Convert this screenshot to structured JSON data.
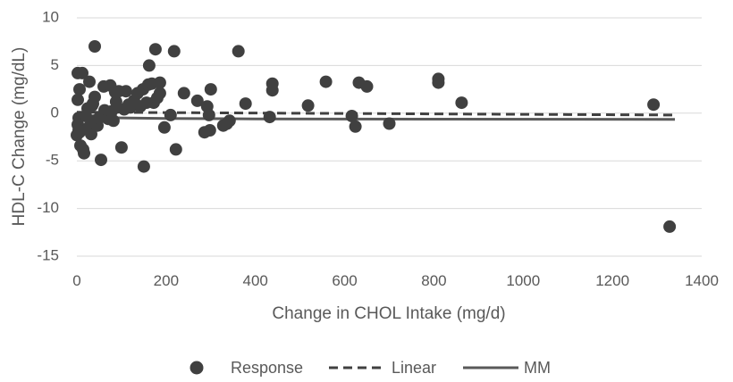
{
  "chart_data": {
    "type": "scatter",
    "title": "",
    "xlabel": "Change in CHOL Intake (mg/d)",
    "ylabel": "HDL-C Change (mg/dL)",
    "xlim": [
      0,
      1400
    ],
    "ylim": [
      -15,
      10
    ],
    "xticks": [
      0,
      200,
      400,
      600,
      800,
      1000,
      1200,
      1400
    ],
    "yticks": [
      10,
      5,
      0,
      -5,
      -10,
      -15
    ],
    "grid": "horizontal",
    "legend_position": "bottom",
    "colors": {
      "response": "#404040",
      "linear": "#404040",
      "mm": "#595959",
      "grid": "#d9d9d9",
      "text": "#595959"
    },
    "series": [
      {
        "name": "Response",
        "kind": "scatter",
        "points": [
          [
            2,
            4.2
          ],
          [
            12,
            4.2
          ],
          [
            6,
            2.5
          ],
          [
            2,
            1.4
          ],
          [
            4,
            -0.5
          ],
          [
            2,
            -1.2
          ],
          [
            4,
            -1.8
          ],
          [
            0,
            -2.3
          ],
          [
            6,
            -2.0
          ],
          [
            8,
            -3.4
          ],
          [
            14,
            -3.8
          ],
          [
            16,
            -4.2
          ],
          [
            20,
            -0.3
          ],
          [
            24,
            0.5
          ],
          [
            26,
            -1.5
          ],
          [
            28,
            3.3
          ],
          [
            32,
            -2.2
          ],
          [
            34,
            0.8
          ],
          [
            36,
            1.0
          ],
          [
            38,
            -0.8
          ],
          [
            40,
            1.7
          ],
          [
            40,
            7.0
          ],
          [
            46,
            -1.3
          ],
          [
            50,
            -0.5
          ],
          [
            54,
            -4.9
          ],
          [
            60,
            2.8
          ],
          [
            62,
            0.3
          ],
          [
            66,
            0.0
          ],
          [
            70,
            -0.6
          ],
          [
            75,
            2.9
          ],
          [
            78,
            0.2
          ],
          [
            82,
            -0.8
          ],
          [
            86,
            2.2
          ],
          [
            88,
            1.2
          ],
          [
            90,
            0.6
          ],
          [
            94,
            2.3
          ],
          [
            100,
            -3.6
          ],
          [
            106,
            0.4
          ],
          [
            110,
            2.3
          ],
          [
            116,
            0.9
          ],
          [
            120,
            0.6
          ],
          [
            128,
            1.3
          ],
          [
            136,
            2.1
          ],
          [
            142,
            0.7
          ],
          [
            148,
            2.5
          ],
          [
            150,
            -5.6
          ],
          [
            156,
            1.1
          ],
          [
            160,
            3.0
          ],
          [
            162,
            5.0
          ],
          [
            168,
            3.1
          ],
          [
            172,
            1.1
          ],
          [
            176,
            6.7
          ],
          [
            180,
            1.6
          ],
          [
            186,
            2.1
          ],
          [
            186,
            3.2
          ],
          [
            196,
            -1.5
          ],
          [
            210,
            -0.2
          ],
          [
            218,
            6.5
          ],
          [
            222,
            -3.8
          ],
          [
            240,
            2.1
          ],
          [
            270,
            1.3
          ],
          [
            286,
            -2.0
          ],
          [
            292,
            0.7
          ],
          [
            296,
            -0.2
          ],
          [
            298,
            -1.8
          ],
          [
            300,
            2.5
          ],
          [
            328,
            -1.3
          ],
          [
            336,
            -1.1
          ],
          [
            342,
            -0.8
          ],
          [
            362,
            6.5
          ],
          [
            378,
            1.0
          ],
          [
            432,
            -0.4
          ],
          [
            438,
            3.1
          ],
          [
            438,
            2.4
          ],
          [
            518,
            0.8
          ],
          [
            558,
            3.3
          ],
          [
            616,
            -0.3
          ],
          [
            624,
            -1.4
          ],
          [
            632,
            3.2
          ],
          [
            650,
            2.8
          ],
          [
            700,
            -1.1
          ],
          [
            810,
            3.6
          ],
          [
            810,
            3.2
          ],
          [
            862,
            1.1
          ],
          [
            1292,
            0.9
          ],
          [
            1328,
            -11.9
          ]
        ]
      },
      {
        "name": "Linear",
        "kind": "line",
        "dash": "dashed",
        "points": [
          [
            0,
            0.1
          ],
          [
            1340,
            -0.2
          ]
        ]
      },
      {
        "name": "MM",
        "kind": "line",
        "dash": "solid",
        "points": [
          [
            0,
            -0.1
          ],
          [
            20,
            -0.35
          ],
          [
            50,
            -0.45
          ],
          [
            100,
            -0.5
          ],
          [
            200,
            -0.55
          ],
          [
            400,
            -0.6
          ],
          [
            800,
            -0.63
          ],
          [
            1340,
            -0.65
          ]
        ]
      }
    ]
  }
}
